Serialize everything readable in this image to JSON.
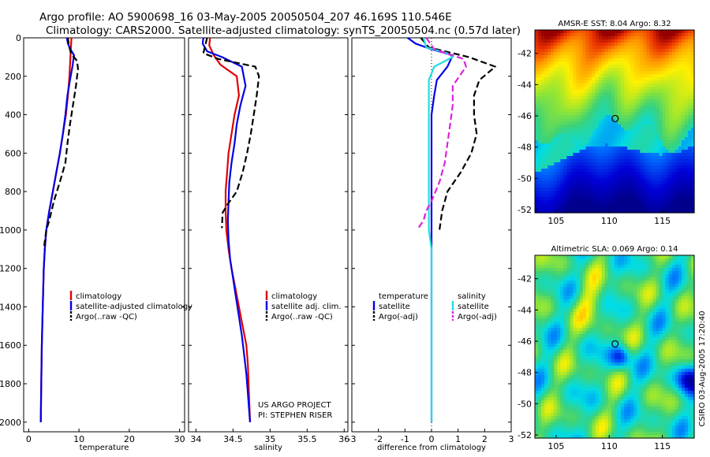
{
  "header": {
    "line1": "Argo profile: AO 5900698_16 03-May-2005 20050504_207 46.169S 110.546E",
    "line2": "Climatology: CARS2000. Satellite-adjusted climatology: synTS_20050504.nc (0.57d later)"
  },
  "credit": "CSIRO 03-Aug-2005 17:20:40",
  "colors": {
    "red": "#e00000",
    "blue": "#0000e6",
    "black": "#000000",
    "cyan": "#22dddd",
    "magenta": "#dd22dd"
  },
  "chart_data": [
    {
      "type": "line",
      "name": "temperature",
      "xlabel": "temperature",
      "xlim": [
        -1,
        31
      ],
      "ylim": [
        2050,
        0
      ],
      "xticks": [
        "0",
        "10",
        "20",
        "30"
      ],
      "yticks": [
        "0",
        "200",
        "400",
        "600",
        "800",
        "1000",
        "1200",
        "1400",
        "1600",
        "1800",
        "2000"
      ],
      "series": [
        {
          "name": "climatology",
          "color": "red",
          "dash": false,
          "points": [
            [
              8.5,
              0
            ],
            [
              8.4,
              50
            ],
            [
              8.3,
              100
            ],
            [
              8.1,
              200
            ],
            [
              7.8,
              300
            ],
            [
              7.4,
              400
            ],
            [
              6.8,
              500
            ],
            [
              6.2,
              600
            ],
            [
              5.5,
              700
            ],
            [
              4.8,
              800
            ],
            [
              4.1,
              900
            ],
            [
              3.5,
              1000
            ],
            [
              3.2,
              1100
            ],
            [
              3.0,
              1200
            ],
            [
              2.8,
              1400
            ],
            [
              2.6,
              1600
            ],
            [
              2.5,
              1800
            ],
            [
              2.4,
              2000
            ]
          ]
        },
        {
          "name": "satellite-adjusted climatology",
          "color": "blue",
          "dash": false,
          "points": [
            [
              7.6,
              0
            ],
            [
              7.8,
              30
            ],
            [
              8.3,
              60
            ],
            [
              9.0,
              90
            ],
            [
              8.7,
              150
            ],
            [
              8.2,
              220
            ],
            [
              7.7,
              300
            ],
            [
              7.3,
              400
            ],
            [
              6.8,
              500
            ],
            [
              6.2,
              600
            ],
            [
              5.5,
              700
            ],
            [
              4.8,
              800
            ],
            [
              4.1,
              900
            ],
            [
              3.5,
              1000
            ],
            [
              3.2,
              1100
            ],
            [
              3.0,
              1200
            ],
            [
              2.8,
              1400
            ],
            [
              2.6,
              1600
            ],
            [
              2.5,
              1800
            ],
            [
              2.4,
              2000
            ]
          ]
        },
        {
          "name": "Argo(..raw -QC)",
          "color": "black",
          "dash": true,
          "points": [
            [
              7.8,
              0
            ],
            [
              8.0,
              40
            ],
            [
              8.4,
              80
            ],
            [
              9.6,
              120
            ],
            [
              9.8,
              160
            ],
            [
              9.4,
              250
            ],
            [
              8.8,
              350
            ],
            [
              8.2,
              450
            ],
            [
              7.7,
              550
            ],
            [
              7.3,
              650
            ],
            [
              6.2,
              750
            ],
            [
              5.0,
              850
            ],
            [
              4.1,
              950
            ],
            [
              3.5,
              1000
            ],
            [
              3.0,
              1100
            ]
          ]
        }
      ],
      "legend": {
        "items": [
          "climatology",
          "satellite-adjusted climatology",
          "Argo(..raw -QC)"
        ]
      }
    },
    {
      "type": "line",
      "name": "salinity",
      "xlabel": "salinity",
      "xlim": [
        33.9,
        36.05
      ],
      "ylim": [
        2050,
        0
      ],
      "xticks": [
        "34",
        "34.5",
        "35",
        "35.5",
        "36"
      ],
      "series": [
        {
          "name": "climatology",
          "color": "red",
          "dash": false,
          "points": [
            [
              34.19,
              0
            ],
            [
              34.18,
              40
            ],
            [
              34.24,
              90
            ],
            [
              34.33,
              140
            ],
            [
              34.55,
              200
            ],
            [
              34.58,
              300
            ],
            [
              34.52,
              400
            ],
            [
              34.48,
              500
            ],
            [
              34.44,
              600
            ],
            [
              34.42,
              700
            ],
            [
              34.4,
              800
            ],
            [
              34.4,
              900
            ],
            [
              34.41,
              1000
            ],
            [
              34.44,
              1100
            ],
            [
              34.48,
              1200
            ],
            [
              34.53,
              1300
            ],
            [
              34.58,
              1400
            ],
            [
              34.63,
              1500
            ],
            [
              34.68,
              1600
            ],
            [
              34.7,
              1700
            ],
            [
              34.71,
              1800
            ],
            [
              34.72,
              1900
            ],
            [
              34.73,
              2000
            ]
          ]
        },
        {
          "name": "satellite adj. clim.",
          "color": "blue",
          "dash": false,
          "points": [
            [
              34.1,
              0
            ],
            [
              34.09,
              30
            ],
            [
              34.15,
              70
            ],
            [
              34.35,
              100
            ],
            [
              34.62,
              150
            ],
            [
              34.67,
              250
            ],
            [
              34.6,
              350
            ],
            [
              34.55,
              450
            ],
            [
              34.52,
              550
            ],
            [
              34.48,
              650
            ],
            [
              34.45,
              750
            ],
            [
              34.44,
              850
            ],
            [
              34.43,
              950
            ],
            [
              34.44,
              1050
            ],
            [
              34.46,
              1150
            ],
            [
              34.5,
              1250
            ],
            [
              34.54,
              1350
            ],
            [
              34.58,
              1450
            ],
            [
              34.62,
              1550
            ],
            [
              34.65,
              1650
            ],
            [
              34.68,
              1750
            ],
            [
              34.7,
              1850
            ],
            [
              34.72,
              1950
            ],
            [
              34.73,
              2000
            ]
          ]
        },
        {
          "name": "Argo(..raw -QC)",
          "color": "black",
          "dash": true,
          "points": [
            [
              34.15,
              0
            ],
            [
              34.1,
              80
            ],
            [
              34.3,
              110
            ],
            [
              34.8,
              150
            ],
            [
              34.85,
              200
            ],
            [
              34.82,
              300
            ],
            [
              34.78,
              400
            ],
            [
              34.74,
              500
            ],
            [
              34.69,
              600
            ],
            [
              34.63,
              700
            ],
            [
              34.55,
              800
            ],
            [
              34.42,
              870
            ],
            [
              34.36,
              910
            ],
            [
              34.35,
              990
            ]
          ]
        }
      ],
      "legend": {
        "items": [
          "climatology",
          "satellite adj. clim.",
          "Argo(..raw -QC)"
        ]
      },
      "annotation": {
        "line1": "US ARGO PROJECT",
        "line2": "PI: STEPHEN RISER"
      }
    },
    {
      "type": "line",
      "name": "difference",
      "xlabel": "difference from climatology",
      "xlim": [
        -3,
        3
      ],
      "ylim": [
        2050,
        0
      ],
      "xticks": [
        "-3",
        "-2",
        "-1",
        "0",
        "1",
        "2",
        "3"
      ],
      "zero_line": true,
      "series": [
        {
          "name": "temperature satellite",
          "color": "blue",
          "dash": false,
          "points": [
            [
              -0.9,
              0
            ],
            [
              -0.6,
              30
            ],
            [
              0.0,
              60
            ],
            [
              0.8,
              90
            ],
            [
              0.6,
              150
            ],
            [
              0.2,
              220
            ],
            [
              0.1,
              300
            ],
            [
              0.0,
              400
            ],
            [
              0.0,
              500
            ],
            [
              0.0,
              600
            ],
            [
              0.0,
              700
            ],
            [
              0.0,
              800
            ],
            [
              0.0,
              900
            ],
            [
              0.0,
              1000
            ],
            [
              0.0,
              2000
            ]
          ]
        },
        {
          "name": "temperature Argo(-adj)",
          "color": "black",
          "dash": true,
          "points": [
            [
              -0.4,
              0
            ],
            [
              -0.1,
              50
            ],
            [
              1.4,
              100
            ],
            [
              2.4,
              150
            ],
            [
              1.8,
              220
            ],
            [
              1.6,
              300
            ],
            [
              1.6,
              400
            ],
            [
              1.7,
              500
            ],
            [
              1.5,
              600
            ],
            [
              1.1,
              700
            ],
            [
              0.6,
              800
            ],
            [
              0.4,
              900
            ],
            [
              0.3,
              1000
            ]
          ]
        },
        {
          "name": "salinity satellite",
          "color": "cyan",
          "dash": false,
          "points": [
            [
              -0.3,
              0
            ],
            [
              -0.2,
              50
            ],
            [
              0.6,
              80
            ],
            [
              0.8,
              100
            ],
            [
              0.1,
              150
            ],
            [
              -0.1,
              220
            ],
            [
              -0.1,
              300
            ],
            [
              -0.1,
              450
            ],
            [
              -0.1,
              600
            ],
            [
              -0.1,
              750
            ],
            [
              -0.1,
              900
            ],
            [
              -0.1,
              1000
            ],
            [
              0.0,
              1100
            ],
            [
              0.0,
              2000
            ]
          ]
        },
        {
          "name": "salinity Argo(-adj)",
          "color": "magenta",
          "dash": true,
          "points": [
            [
              -0.2,
              0
            ],
            [
              0.1,
              60
            ],
            [
              1.2,
              110
            ],
            [
              1.3,
              150
            ],
            [
              0.8,
              250
            ],
            [
              0.8,
              350
            ],
            [
              0.7,
              450
            ],
            [
              0.6,
              550
            ],
            [
              0.5,
              650
            ],
            [
              0.3,
              750
            ],
            [
              0.0,
              850
            ],
            [
              -0.2,
              900
            ],
            [
              -0.3,
              950
            ],
            [
              -0.5,
              990
            ]
          ]
        }
      ],
      "legend": {
        "temp_title": "temperature",
        "temp_items": [
          "satellite",
          "Argo(-adj)"
        ],
        "sal_title": "salinity",
        "sal_items": [
          "satellite",
          "Argo(-adj)"
        ]
      }
    },
    {
      "type": "heatmap",
      "name": "sst-map",
      "title": "AMSR-E SST: 8.04 Argo: 8.32",
      "xlim": [
        103,
        118
      ],
      "ylim": [
        -52.2,
        -40.5
      ],
      "xticks": [
        "105",
        "110",
        "115"
      ],
      "yticks": [
        "-42",
        "-44",
        "-46",
        "-48",
        "-50",
        "-52"
      ],
      "marker": [
        110.55,
        -46.17
      ]
    },
    {
      "type": "heatmap",
      "name": "sla-map",
      "title": "Altimetric SLA: 0.069 Argo: 0.14",
      "xlim": [
        103,
        118
      ],
      "ylim": [
        -52.2,
        -40.5
      ],
      "xticks": [
        "105",
        "110",
        "115"
      ],
      "yticks": [
        "-42",
        "-44",
        "-46",
        "-48",
        "-50",
        "-52"
      ],
      "marker": [
        110.55,
        -46.17
      ]
    }
  ]
}
